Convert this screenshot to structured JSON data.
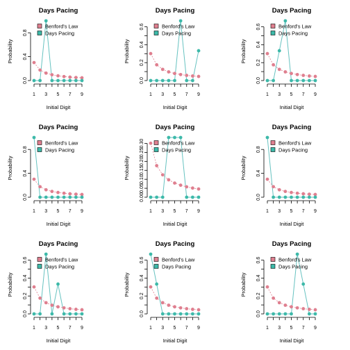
{
  "chart_data": [
    {
      "type": "line",
      "title": "Days Pacing",
      "xlabel": "Initial Digit",
      "ylabel": "Probability",
      "x": [
        1,
        2,
        3,
        4,
        5,
        6,
        7,
        8,
        9
      ],
      "ylim": [
        0,
        1
      ],
      "yticks": [
        0,
        0.4,
        0.8
      ],
      "ytick_labels": [
        "0.0",
        "0.4",
        "0.8"
      ],
      "legend": "top-right",
      "series": [
        {
          "name": "Benford's Law",
          "values": [
            0.301,
            0.176,
            0.125,
            0.097,
            0.079,
            0.067,
            0.058,
            0.051,
            0.046
          ]
        },
        {
          "name": "Days Pacing",
          "values": [
            0,
            0,
            1,
            0,
            0,
            0,
            0,
            0,
            0
          ]
        }
      ]
    },
    {
      "type": "line",
      "title": "Days Pacing",
      "xlabel": "Initial Digit",
      "ylabel": "Probability",
      "x": [
        1,
        2,
        3,
        4,
        5,
        6,
        7,
        8,
        9
      ],
      "ylim": [
        0,
        0.667
      ],
      "yticks": [
        0,
        0.1,
        0.2,
        0.3,
        0.4,
        0.5,
        0.6
      ],
      "ytick_labels": [
        "0.0",
        "",
        "0.2",
        "",
        "0.4",
        "",
        "0.6"
      ],
      "legend": "top-right",
      "series": [
        {
          "name": "Benford's Law",
          "values": [
            0.301,
            0.176,
            0.125,
            0.097,
            0.079,
            0.067,
            0.058,
            0.051,
            0.046
          ]
        },
        {
          "name": "Days Pacing",
          "values": [
            0,
            0,
            0,
            0,
            0,
            0.667,
            0,
            0,
            0.333
          ]
        }
      ]
    },
    {
      "type": "line",
      "title": "Days Pacing",
      "xlabel": "Initial Digit",
      "ylabel": "Probability",
      "x": [
        1,
        2,
        3,
        4,
        5,
        6,
        7,
        8,
        9
      ],
      "ylim": [
        0,
        0.667
      ],
      "yticks": [
        0,
        0.1,
        0.2,
        0.3,
        0.4,
        0.5,
        0.6
      ],
      "ytick_labels": [
        "0.0",
        "",
        "0.2",
        "",
        "0.4",
        "",
        "0.6"
      ],
      "legend": "top-right",
      "series": [
        {
          "name": "Benford's Law",
          "values": [
            0.301,
            0.176,
            0.125,
            0.097,
            0.079,
            0.067,
            0.058,
            0.051,
            0.046
          ]
        },
        {
          "name": "Days Pacing",
          "values": [
            0,
            0,
            0.333,
            0.667,
            0,
            0,
            0,
            0,
            0
          ]
        }
      ]
    },
    {
      "type": "line",
      "title": "Days Pacing",
      "xlabel": "Initial Digit",
      "ylabel": "Probability",
      "x": [
        1,
        2,
        3,
        4,
        5,
        6,
        7,
        8,
        9
      ],
      "ylim": [
        0,
        1
      ],
      "yticks": [
        0,
        0.4,
        0.8
      ],
      "ytick_labels": [
        "0.0",
        "0.4",
        "0.8"
      ],
      "legend": "top-right",
      "series": [
        {
          "name": "Benford's Law",
          "values": [
            0.301,
            0.176,
            0.125,
            0.097,
            0.079,
            0.067,
            0.058,
            0.051,
            0.046
          ]
        },
        {
          "name": "Days Pacing",
          "values": [
            1,
            0,
            0,
            0,
            0,
            0,
            0,
            0,
            0
          ]
        }
      ]
    },
    {
      "type": "line",
      "title": "Days Pacing",
      "xlabel": "Initial Digit",
      "ylabel": "Probability",
      "x": [
        1,
        2,
        3,
        4,
        5,
        6,
        7,
        8,
        9
      ],
      "ylim": [
        0,
        0.333
      ],
      "yticks": [
        0,
        0.05,
        0.1,
        0.15,
        0.2,
        0.25,
        0.3
      ],
      "ytick_labels": [
        "0.00",
        "0.05",
        "0.10",
        "0.15",
        "0.20",
        "0.25",
        "0.30"
      ],
      "legend": "top-right",
      "series": [
        {
          "name": "Benford's Law",
          "values": [
            0.301,
            0.176,
            0.125,
            0.097,
            0.079,
            0.067,
            0.058,
            0.051,
            0.046
          ]
        },
        {
          "name": "Days Pacing",
          "values": [
            0,
            0,
            0,
            0.333,
            0.333,
            0.333,
            0,
            0,
            0
          ]
        }
      ]
    },
    {
      "type": "line",
      "title": "Days Pacing",
      "xlabel": "Initial Digit",
      "ylabel": "Probability",
      "x": [
        1,
        2,
        3,
        4,
        5,
        6,
        7,
        8,
        9
      ],
      "ylim": [
        0,
        1
      ],
      "yticks": [
        0,
        0.4,
        0.8
      ],
      "ytick_labels": [
        "0.0",
        "0.4",
        "0.8"
      ],
      "legend": "top-right",
      "series": [
        {
          "name": "Benford's Law",
          "values": [
            0.301,
            0.176,
            0.125,
            0.097,
            0.079,
            0.067,
            0.058,
            0.051,
            0.046
          ]
        },
        {
          "name": "Days Pacing",
          "values": [
            1,
            0,
            0,
            0,
            0,
            0,
            0,
            0,
            0
          ]
        }
      ]
    },
    {
      "type": "line",
      "title": "Days Pacing",
      "xlabel": "Initial Digit",
      "ylabel": "Probability",
      "x": [
        1,
        2,
        3,
        4,
        5,
        6,
        7,
        8,
        9
      ],
      "ylim": [
        0,
        0.667
      ],
      "yticks": [
        0,
        0.1,
        0.2,
        0.3,
        0.4,
        0.5,
        0.6
      ],
      "ytick_labels": [
        "0.0",
        "",
        "0.2",
        "",
        "0.4",
        "",
        "0.6"
      ],
      "legend": "top-right",
      "series": [
        {
          "name": "Benford's Law",
          "values": [
            0.301,
            0.176,
            0.125,
            0.097,
            0.079,
            0.067,
            0.058,
            0.051,
            0.046
          ]
        },
        {
          "name": "Days Pacing",
          "values": [
            0,
            0,
            0.667,
            0,
            0.333,
            0,
            0,
            0,
            0
          ]
        }
      ]
    },
    {
      "type": "line",
      "title": "Days Pacing",
      "xlabel": "Initial Digit",
      "ylabel": "Probability",
      "x": [
        1,
        2,
        3,
        4,
        5,
        6,
        7,
        8,
        9
      ],
      "ylim": [
        0,
        0.667
      ],
      "yticks": [
        0,
        0.1,
        0.2,
        0.3,
        0.4,
        0.5,
        0.6
      ],
      "ytick_labels": [
        "0.0",
        "",
        "0.2",
        "",
        "0.4",
        "",
        "0.6"
      ],
      "legend": "top-right",
      "series": [
        {
          "name": "Benford's Law",
          "values": [
            0.301,
            0.176,
            0.125,
            0.097,
            0.079,
            0.067,
            0.058,
            0.051,
            0.046
          ]
        },
        {
          "name": "Days Pacing",
          "values": [
            0.667,
            0.333,
            0,
            0,
            0,
            0,
            0,
            0,
            0
          ]
        }
      ]
    },
    {
      "type": "line",
      "title": "Days Pacing",
      "xlabel": "Initial Digit",
      "ylabel": "Probability",
      "x": [
        1,
        2,
        3,
        4,
        5,
        6,
        7,
        8,
        9
      ],
      "ylim": [
        0,
        0.667
      ],
      "yticks": [
        0,
        0.1,
        0.2,
        0.3,
        0.4,
        0.5,
        0.6
      ],
      "ytick_labels": [
        "0.0",
        "",
        "0.2",
        "",
        "0.4",
        "",
        "0.6"
      ],
      "legend": "top-right",
      "series": [
        {
          "name": "Benford's Law",
          "values": [
            0.301,
            0.176,
            0.125,
            0.097,
            0.079,
            0.067,
            0.058,
            0.051,
            0.046
          ]
        },
        {
          "name": "Days Pacing",
          "values": [
            0,
            0,
            0,
            0,
            0,
            0.667,
            0.333,
            0,
            0
          ]
        }
      ]
    }
  ],
  "xtick_labels": [
    "1",
    "3",
    "5",
    "7",
    "9"
  ],
  "colors": {
    "benford": "#DF7F8F",
    "days": "#3DB9A9",
    "days_line": "#66C2C0"
  }
}
